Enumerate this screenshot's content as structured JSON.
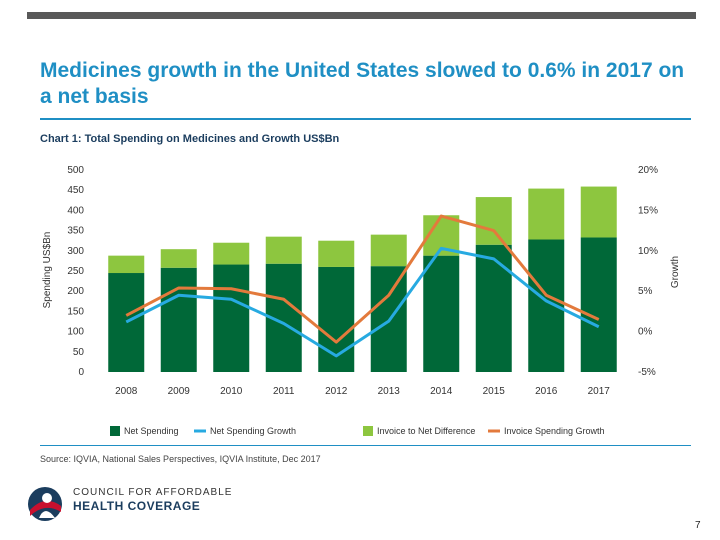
{
  "title": "Medicines growth in the United States slowed to 0.6% in 2017 on a net basis",
  "chart_heading": "Chart 1: Total Spending on Medicines and Growth US$Bn",
  "source": "Source: IQVIA, National Sales Perspectives, IQVIA Institute, Dec 2017",
  "logo": {
    "line1": "COUNCIL FOR AFFORDABLE",
    "line2": "HEALTH COVERAGE"
  },
  "page_number": "7",
  "colors": {
    "net_spending": "#006838",
    "invoice_diff": "#8dc63f",
    "net_growth": "#27aae1",
    "invoice_growth": "#e37a3c",
    "title_blue": "#1f8fc4"
  },
  "chart_data": {
    "type": "bar",
    "title": "Chart 1: Total Spending on Medicines and Growth US$Bn",
    "categories": [
      "2008",
      "2009",
      "2010",
      "2011",
      "2012",
      "2013",
      "2014",
      "2015",
      "2016",
      "2017"
    ],
    "ylabel": "Spending US$Bn",
    "ylim": [
      0,
      500
    ],
    "yticks": [
      "0",
      "50",
      "100",
      "150",
      "200",
      "250",
      "300",
      "350",
      "400",
      "450",
      "500"
    ],
    "y2label": "Growth",
    "y2lim": [
      -5,
      20
    ],
    "y2ticks": [
      "-5%",
      "0%",
      "5%",
      "10%",
      "15%",
      "20%"
    ],
    "series": [
      {
        "name": "Net Spending",
        "kind": "bar",
        "values": [
          245,
          258,
          266,
          268,
          260,
          262,
          288,
          315,
          328,
          333
        ]
      },
      {
        "name": "Invoice to Net Difference",
        "kind": "bar-stacked",
        "values": [
          43,
          46,
          54,
          67,
          65,
          78,
          100,
          118,
          126,
          126
        ]
      },
      {
        "name": "Net Spending Growth",
        "kind": "line",
        "axis": "right",
        "values": [
          1.2,
          4.5,
          4.0,
          1.0,
          -3.0,
          1.3,
          10.3,
          9.0,
          3.8,
          0.6
        ]
      },
      {
        "name": "Invoice Spending Growth",
        "kind": "line",
        "axis": "right",
        "values": [
          2.0,
          5.4,
          5.3,
          4.0,
          -1.3,
          4.5,
          14.3,
          12.5,
          4.5,
          1.5
        ]
      }
    ],
    "legend": [
      "Net Spending",
      "Net Spending Growth",
      "Invoice to Net Difference",
      "Invoice Spending Growth"
    ]
  }
}
